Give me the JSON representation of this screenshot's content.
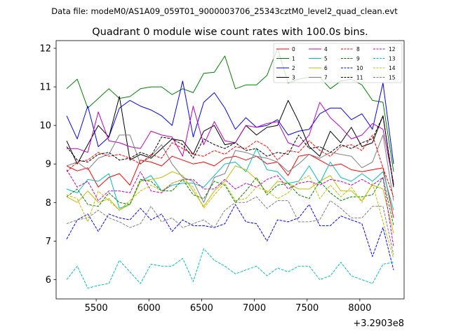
{
  "chart_data": {
    "type": "line",
    "suptitle": "Data file: modeM0/AS1A09_059T01_9000003706_25343cztM0_level2_quad_clean.evt",
    "title": "Quadrant 0 module wise count rates with 100.0s bins.",
    "xlabel": "",
    "ylabel": "",
    "x_offset_label": "+3.2903e8",
    "xlim": [
      5120,
      8420
    ],
    "ylim": [
      5.5,
      12.2
    ],
    "xticks": [
      5500,
      6000,
      6500,
      7000,
      7500,
      8000
    ],
    "yticks": [
      6,
      7,
      8,
      9,
      10,
      11,
      12
    ],
    "legend": {
      "position": "top-right",
      "ncol": 4
    },
    "x": [
      5220,
      5320,
      5420,
      5520,
      5620,
      5720,
      5820,
      5920,
      6020,
      6120,
      6220,
      6320,
      6420,
      6520,
      6620,
      6720,
      6820,
      6920,
      7020,
      7120,
      7220,
      7320,
      7420,
      7520,
      7620,
      7720,
      7820,
      7920,
      8020,
      8120,
      8220,
      8320
    ],
    "series": [
      {
        "name": "0",
        "color": "#ff0000",
        "dash": "solid",
        "values": [
          8.95,
          8.82,
          8.9,
          8.4,
          8.65,
          8.75,
          8.45,
          9.1,
          9.05,
          8.95,
          9.2,
          9.1,
          9.0,
          9.05,
          8.95,
          9.15,
          9.2,
          9.1,
          9.2,
          9.0,
          9.05,
          8.7,
          9.2,
          9.25,
          9.1,
          8.95,
          9.0,
          8.85,
          8.8,
          8.85,
          8.9,
          7.6
        ]
      },
      {
        "name": "1",
        "color": "#008000",
        "dash": "solid",
        "values": [
          10.95,
          11.2,
          10.45,
          10.7,
          10.95,
          10.7,
          10.75,
          10.95,
          11.0,
          11.0,
          10.8,
          10.95,
          10.85,
          11.35,
          11.38,
          11.8,
          10.95,
          11.05,
          11.05,
          11.3,
          12.0,
          11.1,
          11.2,
          11.25,
          11.25,
          10.95,
          11.15,
          11.2,
          11.05,
          10.65,
          10.6,
          8.8
        ]
      },
      {
        "name": "2",
        "color": "#0000ff",
        "dash": "solid",
        "values": [
          10.25,
          9.65,
          10.5,
          9.45,
          9.7,
          10.45,
          10.65,
          10.5,
          10.4,
          10.25,
          10.0,
          11.15,
          9.7,
          10.6,
          10.85,
          10.45,
          9.9,
          10.2,
          9.95,
          10.0,
          10.15,
          9.75,
          9.85,
          9.9,
          10.3,
          10.45,
          10.45,
          10.15,
          10.3,
          9.9,
          11.1,
          9.0
        ]
      },
      {
        "name": "3",
        "color": "#000000",
        "dash": "solid",
        "values": [
          9.6,
          9.0,
          9.5,
          10.0,
          9.7,
          10.75,
          9.1,
          9.25,
          9.15,
          9.4,
          9.65,
          9.6,
          9.25,
          9.85,
          10.0,
          9.5,
          9.55,
          10.0,
          9.75,
          9.95,
          10.0,
          10.65,
          10.1,
          9.45,
          9.2,
          9.85,
          9.55,
          9.95,
          9.45,
          9.55,
          10.25,
          8.4
        ]
      },
      {
        "name": "4",
        "color": "#bf00bf",
        "dash": "solid",
        "values": [
          9.4,
          9.4,
          9.3,
          10.35,
          9.6,
          9.55,
          9.45,
          9.4,
          9.85,
          9.75,
          9.7,
          9.2,
          10.5,
          9.5,
          10.1,
          9.6,
          9.55,
          10.0,
          9.95,
          10.05,
          10.1,
          9.55,
          9.45,
          9.75,
          10.6,
          10.2,
          9.95,
          9.65,
          9.75,
          10.05,
          9.9,
          8.5
        ]
      },
      {
        "name": "5",
        "color": "#00bfbf",
        "dash": "solid",
        "values": [
          8.35,
          8.25,
          8.6,
          8.55,
          8.75,
          7.85,
          7.95,
          8.55,
          8.7,
          8.3,
          8.45,
          8.5,
          8.5,
          8.4,
          8.7,
          9.0,
          9.05,
          8.8,
          9.4,
          8.85,
          8.8,
          8.5,
          8.55,
          8.95,
          8.5,
          9.05,
          8.65,
          8.55,
          8.75,
          8.55,
          8.8,
          7.8
        ]
      },
      {
        "name": "6",
        "color": "#bfbf00",
        "dash": "solid",
        "values": [
          8.15,
          8.0,
          8.3,
          8.0,
          8.1,
          7.8,
          7.95,
          8.55,
          8.6,
          8.65,
          8.8,
          8.7,
          8.3,
          7.9,
          8.3,
          8.55,
          8.95,
          8.85,
          8.6,
          8.25,
          8.55,
          8.5,
          8.35,
          8.35,
          8.55,
          8.7,
          8.3,
          8.3,
          8.05,
          8.45,
          8.35,
          7.2
        ]
      },
      {
        "name": "7",
        "color": "#808080",
        "dash": "solid",
        "values": [
          8.95,
          9.05,
          8.85,
          9.15,
          9.25,
          9.75,
          9.75,
          9.0,
          9.2,
          9.5,
          9.0,
          8.65,
          8.55,
          8.0,
          8.65,
          8.75,
          9.35,
          9.3,
          9.2,
          9.15,
          9.05,
          8.8,
          9.0,
          9.25,
          9.15,
          9.3,
          9.25,
          9.2,
          8.9,
          9.05,
          9.75,
          8.05
        ]
      },
      {
        "name": "8",
        "color": "#ff0000",
        "dash": "dashed",
        "values": [
          8.8,
          9.05,
          9.1,
          9.3,
          9.2,
          9.25,
          9.15,
          9.0,
          9.25,
          9.15,
          9.55,
          9.4,
          9.25,
          9.2,
          9.35,
          9.25,
          9.45,
          9.4,
          9.6,
          9.45,
          9.1,
          9.35,
          9.3,
          9.6,
          9.35,
          9.2,
          9.45,
          9.5,
          9.35,
          9.75,
          8.9,
          8.15
        ]
      },
      {
        "name": "9",
        "color": "#008000",
        "dash": "dashed",
        "values": [
          8.15,
          8.35,
          7.95,
          7.9,
          8.25,
          8.0,
          7.95,
          8.6,
          8.55,
          8.3,
          8.3,
          8.6,
          8.2,
          8.1,
          8.55,
          8.45,
          8.0,
          8.3,
          8.65,
          8.2,
          8.45,
          8.5,
          8.2,
          8.1,
          8.55,
          8.25,
          8.05,
          8.15,
          8.15,
          8.2,
          8.65,
          7.4
        ]
      },
      {
        "name": "10",
        "color": "#0000ff",
        "dash": "dashed",
        "values": [
          7.05,
          7.55,
          7.7,
          7.25,
          7.7,
          7.6,
          7.55,
          7.85,
          7.55,
          7.7,
          7.25,
          7.55,
          7.4,
          7.4,
          7.35,
          7.45,
          7.95,
          7.5,
          7.45,
          7.0,
          7.55,
          7.5,
          7.6,
          7.95,
          7.4,
          7.4,
          7.65,
          7.55,
          7.45,
          6.6,
          7.35,
          6.25
        ]
      },
      {
        "name": "11",
        "color": "#000000",
        "dash": "dashed",
        "values": [
          9.45,
          9.1,
          9.05,
          9.25,
          9.3,
          9.1,
          9.15,
          9.3,
          9.2,
          9.7,
          9.65,
          9.5,
          9.15,
          9.65,
          9.5,
          9.4,
          9.55,
          9.35,
          9.4,
          9.2,
          9.3,
          9.25,
          9.75,
          9.4,
          9.45,
          9.3,
          9.5,
          9.4,
          9.55,
          9.65,
          10.25,
          8.45
        ]
      },
      {
        "name": "12",
        "color": "#bf00bf",
        "dash": "dashed",
        "values": [
          8.85,
          8.4,
          8.55,
          8.05,
          8.3,
          8.3,
          8.25,
          8.8,
          8.3,
          8.25,
          8.5,
          8.6,
          8.6,
          8.35,
          8.35,
          8.6,
          8.35,
          8.5,
          8.4,
          8.6,
          8.7,
          8.35,
          8.5,
          8.55,
          8.45,
          8.6,
          8.55,
          8.45,
          8.6,
          8.45,
          8.65,
          6.85
        ]
      },
      {
        "name": "13",
        "color": "#00bfbf",
        "dash": "dashed",
        "values": [
          6.0,
          6.35,
          5.78,
          5.85,
          5.9,
          6.5,
          6.2,
          5.9,
          6.4,
          6.35,
          6.35,
          6.55,
          5.95,
          6.8,
          6.5,
          6.35,
          6.15,
          6.25,
          6.35,
          6.1,
          6.3,
          6.2,
          6.35,
          6.35,
          6.0,
          6.1,
          6.45,
          6.1,
          6.0,
          5.9,
          6.4,
          6.45
        ]
      },
      {
        "name": "14",
        "color": "#bfbf00",
        "dash": "dashed",
        "values": [
          8.2,
          8.1,
          7.5,
          8.3,
          8.05,
          7.8,
          8.05,
          8.3,
          8.45,
          8.3,
          8.5,
          8.6,
          8.4,
          7.85,
          8.2,
          8.5,
          8.05,
          8.1,
          8.4,
          8.3,
          8.1,
          8.25,
          8.55,
          8.7,
          8.1,
          8.45,
          8.15,
          8.4,
          8.0,
          8.5,
          7.5,
          6.55
        ]
      },
      {
        "name": "15",
        "color": "#808080",
        "dash": "dashed",
        "values": [
          7.45,
          7.55,
          7.6,
          7.8,
          7.6,
          7.5,
          7.35,
          7.45,
          7.9,
          7.5,
          7.6,
          7.35,
          7.45,
          7.55,
          7.35,
          7.8,
          8.0,
          8.0,
          8.15,
          7.85,
          8.05,
          8.05,
          7.5,
          7.5,
          7.55,
          8.05,
          7.85,
          7.6,
          7.6,
          7.9,
          7.9,
          6.65
        ]
      }
    ]
  }
}
